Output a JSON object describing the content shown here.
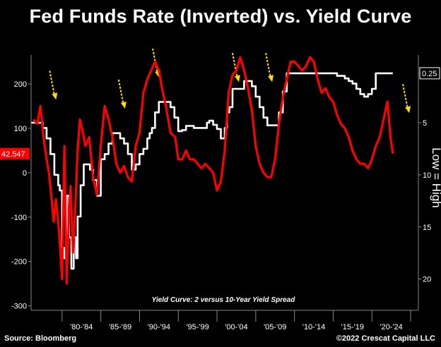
{
  "title": "Fed Funds Rate (Inverted) vs. Yield Curve",
  "footer": {
    "source": "Source: Bloomberg",
    "copyright": "©2022 Crescat Capital LLC"
  },
  "chart_data": {
    "type": "line",
    "annotation": "Yield Curve: 2 versus 10-Year Yield Spread",
    "right_axis_label": "Low = High",
    "x_ticks": [
      "'80-'84",
      "'85-'89",
      "'90-'94",
      "'95-'99",
      "'00-'04",
      "'05-'09",
      "'10-'14",
      "'15-'19",
      "'20-'24"
    ],
    "xlim": [
      1976,
      2026
    ],
    "left_axis": {
      "ticks": [
        200,
        100,
        0,
        -100,
        -200,
        -300
      ],
      "ylim": [
        -310,
        265
      ]
    },
    "right_axis": {
      "ticks": [
        "0.25",
        "5",
        "10",
        "15",
        "20"
      ],
      "tick_values": [
        0.25,
        5,
        10,
        15,
        20
      ],
      "ylim": [
        -1.5,
        23
      ],
      "inverted": true
    },
    "last_value_label": "42.547",
    "right_last_label": "0.25",
    "colors": {
      "yield_curve": "#ff0000",
      "fed_funds": "#ffffff",
      "last_label_bg": "#ff0000",
      "arrow": "#ffdd00"
    },
    "series": [
      {
        "axis": "left",
        "x": [
          1976.3,
          1976.8,
          1977.2,
          1977.6,
          1978.0,
          1978.3,
          1978.6,
          1978.9,
          1979.2,
          1979.6,
          1980.0,
          1980.3,
          1980.6,
          1980.9,
          1981.1,
          1981.4,
          1981.7,
          1982.0,
          1982.3,
          1982.7,
          1983.0,
          1983.5,
          1984.0,
          1984.5,
          1985.0,
          1985.5,
          1986.0,
          1986.5,
          1987.0,
          1987.5,
          1988.0,
          1988.5,
          1989.0,
          1989.5,
          1990.0,
          1990.5,
          1991.0,
          1991.5,
          1992.0,
          1992.5,
          1992.9,
          1993.4,
          1994.0,
          1994.6,
          1995.0,
          1995.5,
          1996.0,
          1996.5,
          1997.0,
          1997.5,
          1998.0,
          1998.5,
          1999.0,
          1999.5,
          2000.0,
          2000.5,
          2001.0,
          2001.5,
          2002.0,
          2002.5,
          2003.0,
          2003.5,
          2004.0,
          2004.5,
          2005.0,
          2005.5,
          2006.0,
          2006.5,
          2007.0,
          2007.5,
          2008.0,
          2008.5,
          2009.0,
          2009.5,
          2010.0,
          2010.5,
          2011.0,
          2011.5,
          2012.0,
          2012.5,
          2013.0,
          2013.5,
          2014.0,
          2014.5,
          2015.0,
          2015.5,
          2016.0,
          2016.5,
          2017.0,
          2017.5,
          2018.0,
          2018.5,
          2019.0,
          2019.5,
          2020.0,
          2020.5,
          2021.0,
          2021.5,
          2022.0,
          2022.4,
          2022.7
        ],
        "y": [
          120,
          110,
          150,
          80,
          30,
          0,
          -50,
          -110,
          -60,
          -130,
          -240,
          60,
          -250,
          -90,
          -30,
          -180,
          -80,
          50,
          120,
          90,
          60,
          80,
          -10,
          -50,
          60,
          150,
          120,
          80,
          20,
          0,
          15,
          -10,
          -20,
          60,
          90,
          180,
          210,
          230,
          250,
          230,
          190,
          150,
          90,
          80,
          30,
          30,
          50,
          30,
          30,
          20,
          10,
          20,
          10,
          0,
          -40,
          -20,
          50,
          180,
          220,
          230,
          260,
          230,
          190,
          140,
          60,
          20,
          0,
          -10,
          -10,
          30,
          110,
          170,
          210,
          250,
          250,
          240,
          230,
          240,
          260,
          250,
          210,
          180,
          190,
          170,
          160,
          130,
          110,
          100,
          80,
          50,
          30,
          20,
          20,
          10,
          30,
          60,
          80,
          120,
          160,
          80,
          43
        ]
      },
      {
        "axis": "right",
        "x": [
          1976.0,
          1977.0,
          1977.5,
          1978.0,
          1978.5,
          1979.0,
          1979.5,
          1979.7,
          1980.0,
          1980.3,
          1980.6,
          1980.9,
          1981.2,
          1981.5,
          1981.8,
          1982.0,
          1982.4,
          1982.8,
          1983.2,
          1983.6,
          1984.0,
          1984.5,
          1985.0,
          1985.5,
          1986.0,
          1986.5,
          1987.0,
          1987.5,
          1988.0,
          1988.5,
          1989.0,
          1989.5,
          1990.0,
          1990.5,
          1991.0,
          1991.3,
          1991.6,
          1992.0,
          1992.5,
          1993.0,
          1993.5,
          1994.0,
          1994.5,
          1995.0,
          1995.5,
          1996.0,
          1997.0,
          1998.0,
          1998.7,
          1999.0,
          1999.5,
          2000.0,
          2000.5,
          2001.0,
          2001.3,
          2001.6,
          2002.0,
          2003.0,
          2003.5,
          2004.0,
          2004.5,
          2005.0,
          2005.5,
          2006.0,
          2006.5,
          2007.0,
          2007.5,
          2008.0,
          2008.5,
          2009.0,
          2011.0,
          2013.0,
          2015.0,
          2015.5,
          2016.0,
          2016.5,
          2017.0,
          2017.5,
          2018.0,
          2018.5,
          2019.0,
          2019.5,
          2020.0,
          2020.5,
          2022.0,
          2022.7
        ],
        "y": [
          5.0,
          5.0,
          5.5,
          6.5,
          8.0,
          10.0,
          11.0,
          11.5,
          17.0,
          18.0,
          12.0,
          16.0,
          19.0,
          16.0,
          18.0,
          14.0,
          11.0,
          9.0,
          9.0,
          9.5,
          10.5,
          12.0,
          8.5,
          8.0,
          7.0,
          6.0,
          6.0,
          6.5,
          7.0,
          8.0,
          9.5,
          9.0,
          8.0,
          7.5,
          6.5,
          6.0,
          5.5,
          4.0,
          3.0,
          3.0,
          3.0,
          3.5,
          4.5,
          5.8,
          5.7,
          5.3,
          5.5,
          5.5,
          5.0,
          4.8,
          5.2,
          5.6,
          6.5,
          5.5,
          4.0,
          3.5,
          1.75,
          1.75,
          1.0,
          1.0,
          1.5,
          2.5,
          3.5,
          4.5,
          5.25,
          5.25,
          5.25,
          4.0,
          2.0,
          0.25,
          0.25,
          0.25,
          0.25,
          0.5,
          0.5,
          0.75,
          1.0,
          1.25,
          1.75,
          2.25,
          2.5,
          2.25,
          1.75,
          0.25,
          0.25,
          0.25
        ]
      }
    ]
  }
}
